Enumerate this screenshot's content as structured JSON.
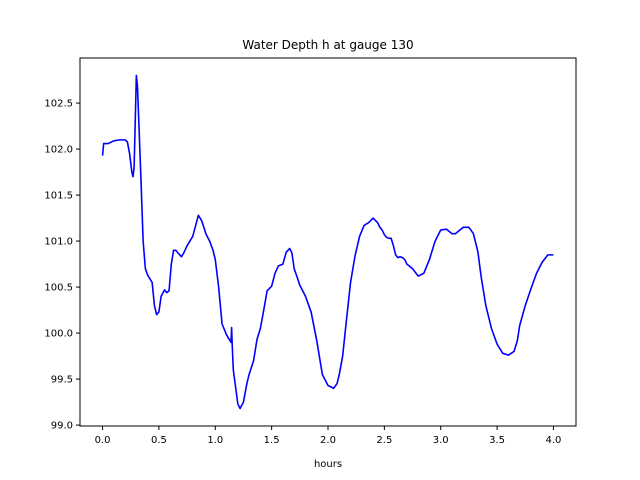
{
  "chart_data": {
    "type": "line",
    "title": "Water Depth h at gauge 130",
    "xlabel": "hours",
    "ylabel": "",
    "xlim": [
      -0.2,
      4.2
    ],
    "ylim": [
      98.99,
      102.99
    ],
    "xticks": [
      0.0,
      0.5,
      1.0,
      1.5,
      2.0,
      2.5,
      3.0,
      3.5,
      4.0
    ],
    "xtick_labels": [
      "0.0",
      "0.5",
      "1.0",
      "1.5",
      "2.0",
      "2.5",
      "3.0",
      "3.5",
      "4.0"
    ],
    "yticks": [
      99.0,
      99.5,
      100.0,
      100.5,
      101.0,
      101.5,
      102.0,
      102.5
    ],
    "ytick_labels": [
      "99.0",
      "99.5",
      "100.0",
      "100.5",
      "101.0",
      "101.5",
      "102.0",
      "102.5"
    ],
    "grid": false,
    "series": [
      {
        "color": "#0000ff",
        "x": [
          0.0,
          0.01,
          0.05,
          0.1,
          0.15,
          0.2,
          0.22,
          0.24,
          0.26,
          0.27,
          0.28,
          0.29,
          0.3,
          0.31,
          0.32,
          0.34,
          0.36,
          0.38,
          0.4,
          0.44,
          0.46,
          0.48,
          0.5,
          0.52,
          0.55,
          0.57,
          0.59,
          0.61,
          0.63,
          0.65,
          0.67,
          0.7,
          0.72,
          0.75,
          0.8,
          0.85,
          0.88,
          0.92,
          0.95,
          0.98,
          1.0,
          1.03,
          1.06,
          1.1,
          1.13,
          1.14,
          1.145,
          1.15,
          1.16,
          1.2,
          1.22,
          1.25,
          1.28,
          1.3,
          1.34,
          1.37,
          1.4,
          1.43,
          1.46,
          1.5,
          1.53,
          1.56,
          1.6,
          1.63,
          1.66,
          1.68,
          1.7,
          1.72,
          1.75,
          1.8,
          1.85,
          1.9,
          1.95,
          2.0,
          2.05,
          2.08,
          2.1,
          2.13,
          2.16,
          2.2,
          2.24,
          2.28,
          2.32,
          2.36,
          2.4,
          2.44,
          2.46,
          2.48,
          2.5,
          2.52,
          2.54,
          2.56,
          2.58,
          2.6,
          2.62,
          2.64,
          2.66,
          2.68,
          2.7,
          2.75,
          2.8,
          2.85,
          2.9,
          2.95,
          3.0,
          3.05,
          3.1,
          3.13,
          3.17,
          3.2,
          3.25,
          3.29,
          3.33,
          3.36,
          3.4,
          3.45,
          3.5,
          3.55,
          3.6,
          3.65,
          3.68,
          3.7,
          3.75,
          3.8,
          3.85,
          3.9,
          3.95,
          4.0
        ],
        "values": [
          101.93,
          102.06,
          102.06,
          102.09,
          102.1,
          102.1,
          102.08,
          101.95,
          101.75,
          101.7,
          101.8,
          102.3,
          102.8,
          102.68,
          102.35,
          101.7,
          101.0,
          100.7,
          100.63,
          100.55,
          100.3,
          100.2,
          100.23,
          100.4,
          100.47,
          100.44,
          100.46,
          100.75,
          100.9,
          100.9,
          100.87,
          100.83,
          100.87,
          100.95,
          101.05,
          101.28,
          101.22,
          101.07,
          101.0,
          100.9,
          100.8,
          100.5,
          100.1,
          99.98,
          99.92,
          99.9,
          100.06,
          99.88,
          99.6,
          99.23,
          99.18,
          99.25,
          99.45,
          99.55,
          99.7,
          99.93,
          100.05,
          100.25,
          100.46,
          100.51,
          100.65,
          100.73,
          100.75,
          100.88,
          100.92,
          100.87,
          100.7,
          100.63,
          100.52,
          100.4,
          100.23,
          99.92,
          99.55,
          99.43,
          99.4,
          99.45,
          99.55,
          99.75,
          100.1,
          100.55,
          100.84,
          101.05,
          101.17,
          101.2,
          101.25,
          101.2,
          101.15,
          101.12,
          101.07,
          101.04,
          101.03,
          101.03,
          100.95,
          100.85,
          100.82,
          100.83,
          100.82,
          100.8,
          100.75,
          100.7,
          100.62,
          100.65,
          100.8,
          101.0,
          101.12,
          101.13,
          101.08,
          101.08,
          101.12,
          101.15,
          101.15,
          101.08,
          100.88,
          100.6,
          100.3,
          100.05,
          99.88,
          99.78,
          99.76,
          99.8,
          99.92,
          100.08,
          100.3,
          100.48,
          100.65,
          100.77,
          100.85,
          100.85
        ]
      }
    ]
  }
}
